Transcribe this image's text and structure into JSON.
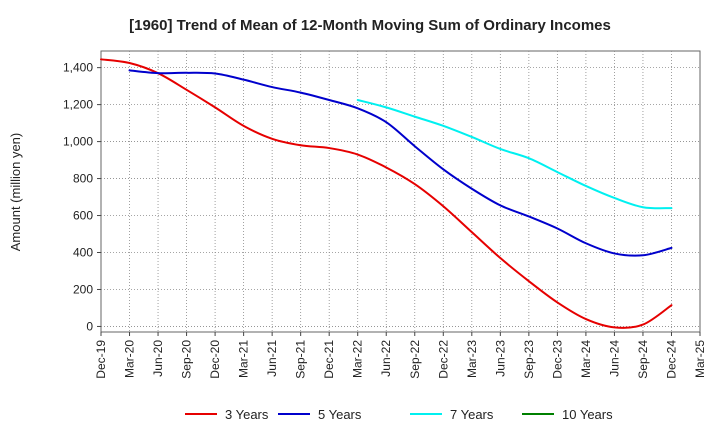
{
  "chart_data": {
    "type": "line",
    "title": "[1960]  Trend of Mean of 12-Month Moving Sum of Ordinary Incomes",
    "xlabel": "",
    "ylabel": "Amount (million yen)",
    "ylim": [
      -30,
      1490
    ],
    "yticks": [
      0,
      200,
      400,
      600,
      800,
      1000,
      1200,
      1400
    ],
    "ytick_labels": [
      "0",
      "200",
      "400",
      "600",
      "800",
      "1,000",
      "1,200",
      "1,400"
    ],
    "categories": [
      "Dec-19",
      "Mar-20",
      "Jun-20",
      "Sep-20",
      "Dec-20",
      "Mar-21",
      "Jun-21",
      "Sep-21",
      "Dec-21",
      "Mar-22",
      "Jun-22",
      "Sep-22",
      "Dec-22",
      "Mar-23",
      "Jun-23",
      "Sep-23",
      "Dec-23",
      "Mar-24",
      "Jun-24",
      "Sep-24",
      "Dec-24",
      "Mar-25"
    ],
    "grid": true,
    "legend": "bottom",
    "series": [
      {
        "name": "3 Years",
        "color": "#e60000",
        "values": [
          1445,
          1425,
          1370,
          1280,
          1185,
          1085,
          1015,
          980,
          965,
          930,
          860,
          770,
          650,
          510,
          370,
          245,
          130,
          40,
          -5,
          10,
          115,
          null
        ]
      },
      {
        "name": "5 Years",
        "color": "#0000cc",
        "values": [
          null,
          1385,
          1370,
          1372,
          1368,
          1335,
          1295,
          1265,
          1225,
          1180,
          1105,
          975,
          850,
          745,
          655,
          595,
          530,
          450,
          395,
          385,
          425,
          null
        ]
      },
      {
        "name": "7 Years",
        "color": "#00f0f0",
        "values": [
          null,
          null,
          null,
          null,
          null,
          null,
          null,
          null,
          null,
          1225,
          1185,
          1135,
          1085,
          1025,
          960,
          910,
          835,
          760,
          695,
          645,
          640,
          null
        ]
      },
      {
        "name": "10 Years",
        "color": "#008000",
        "values": [
          null,
          null,
          null,
          null,
          null,
          null,
          null,
          null,
          null,
          null,
          null,
          null,
          null,
          null,
          null,
          null,
          null,
          null,
          null,
          null,
          null,
          null
        ]
      }
    ]
  }
}
